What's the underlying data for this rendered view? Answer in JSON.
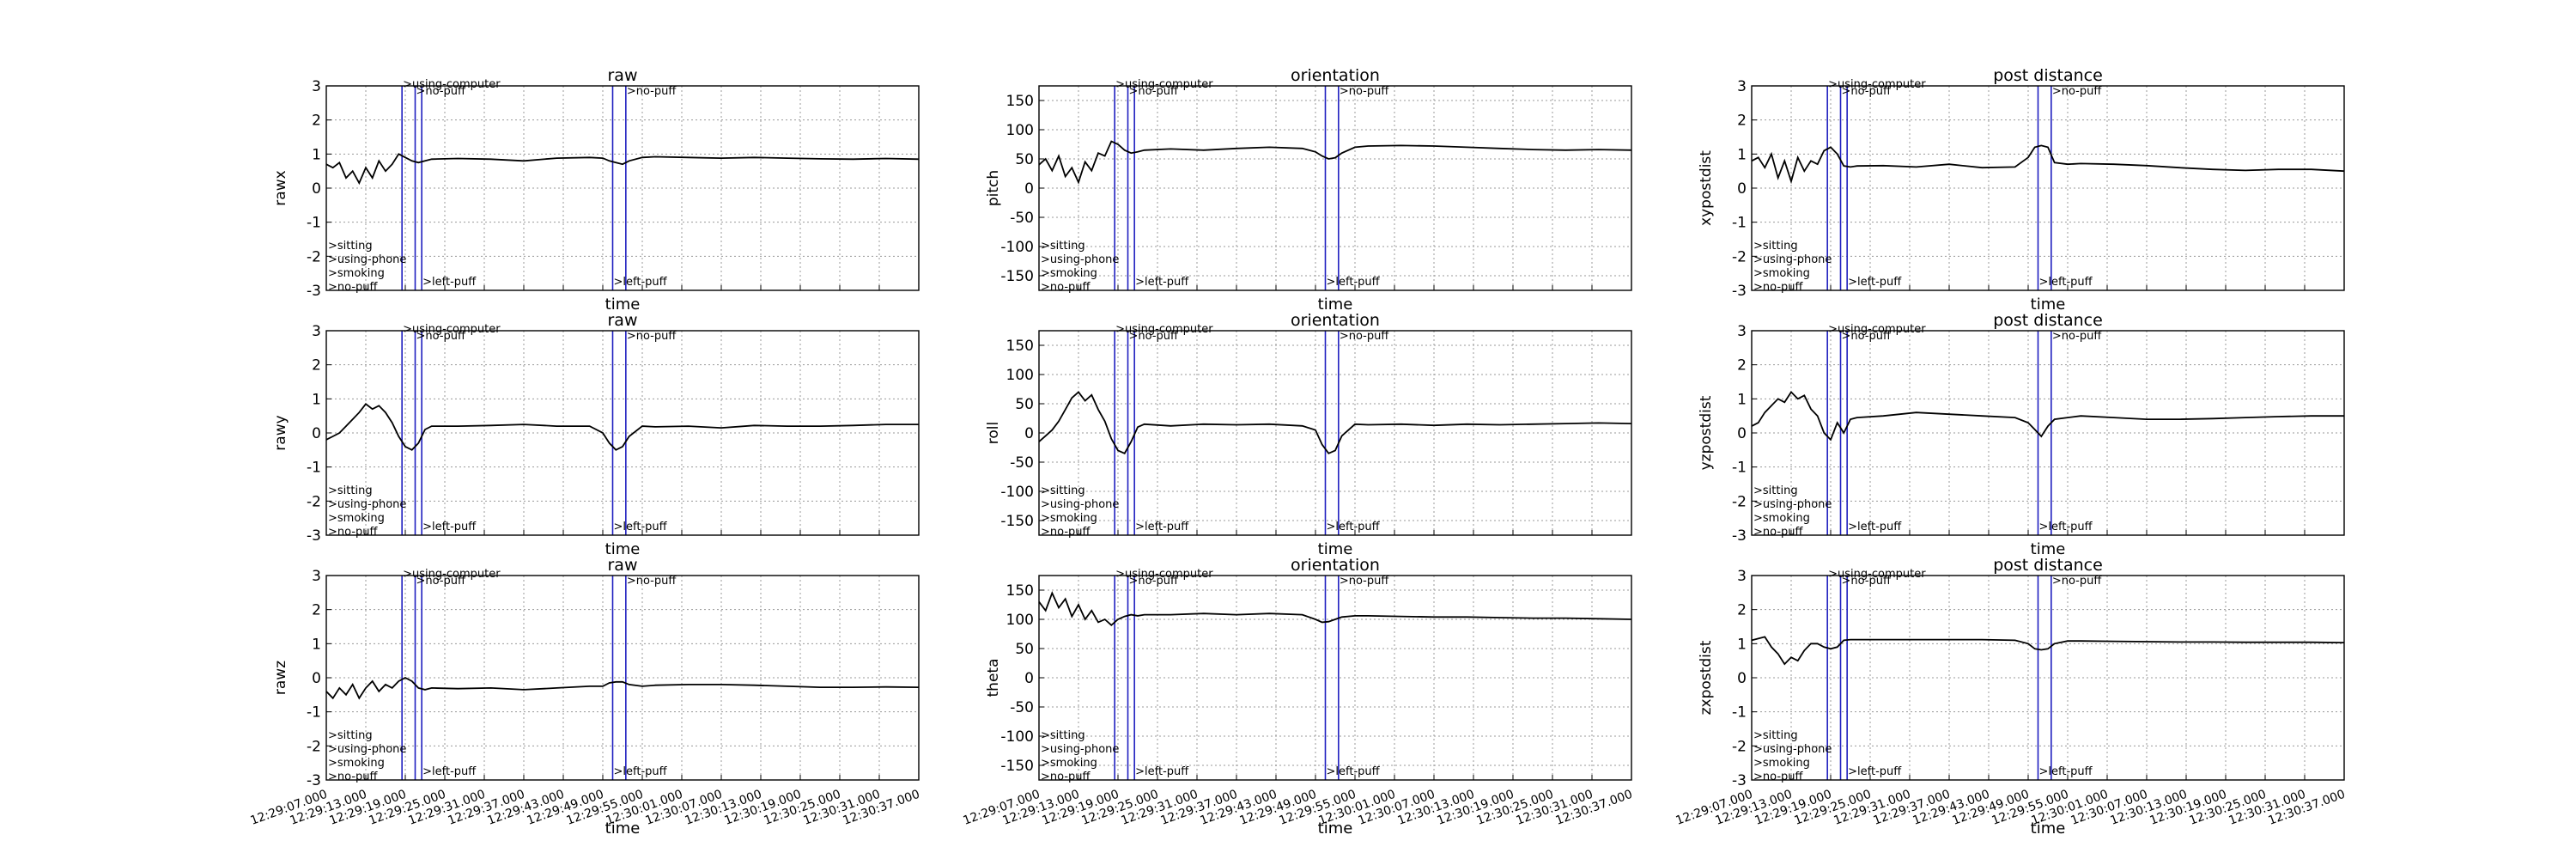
{
  "chart_data": {
    "type": "line",
    "x_ticks": [
      "12:29:07.000",
      "12:29:13.000",
      "12:29:19.000",
      "12:29:25.000",
      "12:29:31.000",
      "12:29:37.000",
      "12:29:43.000",
      "12:29:49.000",
      "12:29:55.000",
      "12:30:01.000",
      "12:30:07.000",
      "12:30:13.000",
      "12:30:19.000",
      "12:30:25.000",
      "12:30:31.000",
      "12:30:37.000"
    ],
    "xlim": [
      0,
      90
    ],
    "grid": true,
    "event_lines": [
      {
        "t": 0,
        "label": ">sitting",
        "position": "bottom"
      },
      {
        "t": 0,
        "label": ">using-phone",
        "position": "bottom"
      },
      {
        "t": 0,
        "label": ">smoking",
        "position": "bottom"
      },
      {
        "t": 0,
        "label": ">no-puff",
        "position": "bottom"
      },
      {
        "t": 11.5,
        "label": ">using-computer",
        "position": "top"
      },
      {
        "t": 13.5,
        "label": ">no-puff",
        "position": "top"
      },
      {
        "t": 14.5,
        "label": ">left-puff",
        "position": "bottom"
      },
      {
        "t": 43.5,
        "label": ">left-puff",
        "position": "bottom"
      },
      {
        "t": 45.5,
        "label": ">no-puff",
        "position": "top"
      }
    ],
    "vlines_x": [
      11.5,
      13.5,
      14.5,
      43.5,
      45.5
    ],
    "columns": [
      {
        "title": "raw",
        "xlabel": "time",
        "panels": [
          {
            "ylabel": "rawx",
            "ylim": [
              -3,
              3
            ],
            "yticks": [
              3,
              2,
              1,
              0,
              -1,
              -2,
              -3
            ],
            "series": {
              "x": [
                0,
                1,
                2,
                3,
                4,
                5,
                6,
                7,
                8,
                9,
                10,
                11,
                12,
                13,
                14,
                15,
                16,
                20,
                25,
                30,
                35,
                40,
                42,
                43,
                44,
                45,
                46,
                48,
                50,
                55,
                60,
                65,
                70,
                75,
                80,
                85,
                90
              ],
              "y": [
                0.7,
                0.6,
                0.75,
                0.3,
                0.5,
                0.15,
                0.6,
                0.3,
                0.8,
                0.5,
                0.7,
                1.0,
                0.9,
                0.8,
                0.75,
                0.8,
                0.85,
                0.87,
                0.85,
                0.8,
                0.88,
                0.9,
                0.88,
                0.8,
                0.75,
                0.7,
                0.8,
                0.9,
                0.92,
                0.9,
                0.88,
                0.9,
                0.88,
                0.86,
                0.85,
                0.87,
                0.85
              ]
            }
          },
          {
            "ylabel": "rawy",
            "ylim": [
              -3,
              3
            ],
            "yticks": [
              3,
              2,
              1,
              0,
              -1,
              -2,
              -3
            ],
            "series": {
              "x": [
                0,
                1,
                2,
                3,
                4,
                5,
                6,
                7,
                8,
                9,
                10,
                11,
                12,
                13,
                14,
                15,
                16,
                20,
                25,
                30,
                35,
                40,
                42,
                43,
                44,
                45,
                46,
                48,
                50,
                55,
                60,
                65,
                70,
                75,
                80,
                85,
                90
              ],
              "y": [
                -0.2,
                -0.1,
                0.0,
                0.2,
                0.4,
                0.6,
                0.85,
                0.7,
                0.8,
                0.6,
                0.3,
                -0.1,
                -0.4,
                -0.5,
                -0.3,
                0.1,
                0.2,
                0.2,
                0.22,
                0.25,
                0.2,
                0.2,
                0.0,
                -0.3,
                -0.5,
                -0.4,
                -0.1,
                0.2,
                0.18,
                0.2,
                0.15,
                0.22,
                0.2,
                0.2,
                0.22,
                0.25,
                0.25
              ]
            }
          },
          {
            "ylabel": "rawz",
            "ylim": [
              -3,
              3
            ],
            "yticks": [
              3,
              2,
              1,
              0,
              -1,
              -2,
              -3
            ],
            "series": {
              "x": [
                0,
                1,
                2,
                3,
                4,
                5,
                6,
                7,
                8,
                9,
                10,
                11,
                12,
                13,
                14,
                15,
                16,
                20,
                25,
                30,
                35,
                40,
                42,
                43,
                44,
                45,
                46,
                48,
                50,
                55,
                60,
                65,
                70,
                75,
                80,
                85,
                90
              ],
              "y": [
                -0.4,
                -0.6,
                -0.3,
                -0.5,
                -0.2,
                -0.6,
                -0.3,
                -0.1,
                -0.4,
                -0.2,
                -0.3,
                -0.1,
                0.0,
                -0.1,
                -0.3,
                -0.35,
                -0.3,
                -0.32,
                -0.3,
                -0.35,
                -0.3,
                -0.25,
                -0.25,
                -0.15,
                -0.12,
                -0.12,
                -0.2,
                -0.25,
                -0.22,
                -0.2,
                -0.2,
                -0.22,
                -0.25,
                -0.28,
                -0.28,
                -0.27,
                -0.28
              ]
            }
          }
        ]
      },
      {
        "title": "orientation",
        "xlabel": "time",
        "panels": [
          {
            "ylabel": "pitch",
            "ylim": [
              -175,
              175
            ],
            "yticks": [
              150,
              100,
              50,
              0,
              -50,
              -100,
              -150
            ],
            "series": {
              "x": [
                0,
                1,
                2,
                3,
                4,
                5,
                6,
                7,
                8,
                9,
                10,
                11,
                12,
                13,
                14,
                15,
                16,
                20,
                25,
                30,
                35,
                40,
                42,
                43,
                44,
                45,
                46,
                48,
                50,
                55,
                60,
                65,
                70,
                75,
                80,
                85,
                90
              ],
              "y": [
                40,
                50,
                30,
                55,
                20,
                35,
                10,
                45,
                30,
                60,
                55,
                80,
                75,
                65,
                60,
                62,
                65,
                67,
                65,
                68,
                70,
                68,
                62,
                55,
                50,
                52,
                60,
                70,
                72,
                73,
                72,
                70,
                68,
                66,
                65,
                66,
                65
              ]
            }
          },
          {
            "ylabel": "roll",
            "ylim": [
              -175,
              175
            ],
            "yticks": [
              150,
              100,
              50,
              0,
              -50,
              -100,
              -150
            ],
            "series": {
              "x": [
                0,
                1,
                2,
                3,
                4,
                5,
                6,
                7,
                8,
                9,
                10,
                11,
                12,
                13,
                14,
                15,
                16,
                20,
                25,
                30,
                35,
                40,
                42,
                43,
                44,
                45,
                46,
                48,
                50,
                55,
                60,
                65,
                70,
                75,
                80,
                85,
                90
              ],
              "y": [
                -15,
                -5,
                5,
                20,
                40,
                60,
                70,
                55,
                65,
                40,
                20,
                -10,
                -30,
                -35,
                -15,
                10,
                15,
                12,
                15,
                14,
                15,
                12,
                5,
                -20,
                -35,
                -30,
                -5,
                15,
                14,
                15,
                13,
                15,
                14,
                15,
                16,
                17,
                16
              ]
            }
          },
          {
            "ylabel": "theta",
            "ylim": [
              -175,
              175
            ],
            "yticks": [
              150,
              100,
              50,
              0,
              -50,
              -100,
              -150
            ],
            "series": {
              "x": [
                0,
                1,
                2,
                3,
                4,
                5,
                6,
                7,
                8,
                9,
                10,
                11,
                12,
                13,
                14,
                15,
                16,
                20,
                25,
                30,
                35,
                40,
                42,
                43,
                44,
                45,
                46,
                48,
                50,
                55,
                60,
                65,
                70,
                75,
                80,
                85,
                90
              ],
              "y": [
                130,
                115,
                145,
                120,
                135,
                105,
                125,
                100,
                115,
                95,
                100,
                90,
                100,
                105,
                108,
                106,
                108,
                108,
                110,
                108,
                110,
                108,
                100,
                95,
                96,
                100,
                104,
                106,
                106,
                105,
                104,
                104,
                103,
                102,
                102,
                101,
                100
              ]
            }
          }
        ]
      },
      {
        "title": "post distance",
        "xlabel": "time",
        "panels": [
          {
            "ylabel": "xypostdist",
            "ylim": [
              -3,
              3
            ],
            "yticks": [
              3,
              2,
              1,
              0,
              -1,
              -2,
              -3
            ],
            "series": {
              "x": [
                0,
                1,
                2,
                3,
                4,
                5,
                6,
                7,
                8,
                9,
                10,
                11,
                12,
                13,
                14,
                15,
                16,
                20,
                25,
                30,
                35,
                40,
                42,
                43,
                44,
                45,
                46,
                48,
                50,
                55,
                60,
                65,
                70,
                75,
                80,
                85,
                90
              ],
              "y": [
                0.8,
                0.9,
                0.6,
                1.0,
                0.3,
                0.8,
                0.2,
                0.9,
                0.5,
                0.8,
                0.7,
                1.1,
                1.2,
                1.0,
                0.65,
                0.62,
                0.65,
                0.66,
                0.62,
                0.7,
                0.6,
                0.62,
                0.9,
                1.2,
                1.25,
                1.2,
                0.75,
                0.7,
                0.72,
                0.7,
                0.66,
                0.6,
                0.55,
                0.52,
                0.55,
                0.55,
                0.5
              ]
            }
          },
          {
            "ylabel": "yzpostdist",
            "ylim": [
              -3,
              3
            ],
            "yticks": [
              3,
              2,
              1,
              0,
              -1,
              -2,
              -3
            ],
            "series": {
              "x": [
                0,
                1,
                2,
                3,
                4,
                5,
                6,
                7,
                8,
                9,
                10,
                11,
                12,
                13,
                14,
                15,
                16,
                20,
                25,
                30,
                35,
                40,
                42,
                43,
                44,
                45,
                46,
                48,
                50,
                55,
                60,
                65,
                70,
                75,
                80,
                85,
                90
              ],
              "y": [
                0.2,
                0.3,
                0.6,
                0.8,
                1.0,
                0.9,
                1.2,
                1.0,
                1.1,
                0.7,
                0.5,
                0.0,
                -0.2,
                0.3,
                0.0,
                0.4,
                0.45,
                0.5,
                0.6,
                0.55,
                0.5,
                0.45,
                0.3,
                0.1,
                -0.1,
                0.2,
                0.4,
                0.45,
                0.5,
                0.45,
                0.4,
                0.4,
                0.42,
                0.45,
                0.48,
                0.5,
                0.5
              ]
            }
          },
          {
            "ylabel": "zxpostdist",
            "ylim": [
              -3,
              3
            ],
            "yticks": [
              3,
              2,
              1,
              0,
              -1,
              -2,
              -3
            ],
            "series": {
              "x": [
                0,
                1,
                2,
                3,
                4,
                5,
                6,
                7,
                8,
                9,
                10,
                11,
                12,
                13,
                14,
                15,
                16,
                20,
                25,
                30,
                35,
                40,
                42,
                43,
                44,
                45,
                46,
                48,
                50,
                55,
                60,
                65,
                70,
                75,
                80,
                85,
                90
              ],
              "y": [
                1.1,
                1.15,
                1.2,
                0.9,
                0.7,
                0.4,
                0.6,
                0.5,
                0.8,
                1.0,
                1.0,
                0.9,
                0.85,
                0.9,
                1.1,
                1.12,
                1.12,
                1.12,
                1.12,
                1.12,
                1.12,
                1.1,
                1.0,
                0.85,
                0.82,
                0.85,
                1.0,
                1.08,
                1.08,
                1.07,
                1.06,
                1.05,
                1.05,
                1.04,
                1.04,
                1.04,
                1.03
              ]
            }
          }
        ]
      }
    ]
  }
}
